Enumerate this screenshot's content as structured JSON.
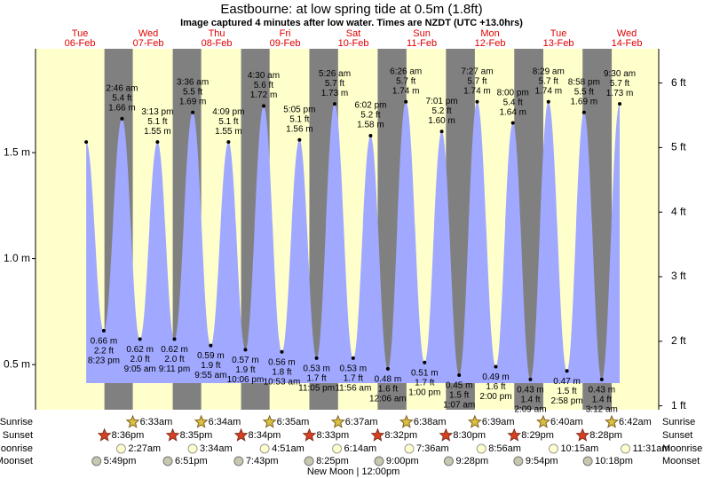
{
  "chart_data": {
    "type": "area",
    "title": "Eastbourne: at low  spring tide at 0.5m (1.8ft)",
    "subtitle": "Image captured 4 minutes after low water. Times are NZDT (UTC +13.0hrs)",
    "days": [
      {
        "weekday": "Tue",
        "date": "06-Feb"
      },
      {
        "weekday": "Wed",
        "date": "07-Feb"
      },
      {
        "weekday": "Thu",
        "date": "08-Feb"
      },
      {
        "weekday": "Fri",
        "date": "09-Feb"
      },
      {
        "weekday": "Sat",
        "date": "10-Feb"
      },
      {
        "weekday": "Sun",
        "date": "11-Feb"
      },
      {
        "weekday": "Mon",
        "date": "12-Feb"
      },
      {
        "weekday": "Tue",
        "date": "13-Feb"
      },
      {
        "weekday": "Wed",
        "date": "14-Feb"
      }
    ],
    "xlim": [
      -3.6,
      215.2
    ],
    "ylim": [
      0.287,
      1.99
    ],
    "yticks": [
      {
        "value": 0.5,
        "label": "0.5 m"
      },
      {
        "value": 1.0,
        "label": "1.0 m"
      },
      {
        "value": 1.5,
        "label": "1.5 m"
      }
    ],
    "y2lim": [
      0.94,
      6.53
    ],
    "y2ticks": [
      {
        "value": 1,
        "label": "1 ft"
      },
      {
        "value": 2,
        "label": "2 ft"
      },
      {
        "value": 3,
        "label": "3 ft"
      },
      {
        "value": 4,
        "label": "4 ft"
      },
      {
        "value": 5,
        "label": "5 ft"
      },
      {
        "value": 6,
        "label": "6 ft"
      }
    ],
    "day_color": "#ffffcc",
    "night_color": "#808080",
    "series": [
      {
        "color": "#a0a8ff",
        "x": [
          14.2,
          20.38,
          26.77,
          33.08,
          39.22,
          45.18,
          51.6,
          57.92,
          64.15,
          70.1,
          76.5,
          82.88,
          89.08,
          95.08,
          101.43,
          107.93,
          114.03,
          120.1,
          126.43,
          133,
          139.02,
          145.12,
          151.45,
          158,
          164,
          170.15,
          176.48,
          182.97,
          188.97,
          195.2,
          201.5
        ],
        "values": [
          1.55,
          0.66,
          1.66,
          0.62,
          1.55,
          0.62,
          1.69,
          0.59,
          1.55,
          0.57,
          1.72,
          0.56,
          1.56,
          0.53,
          1.73,
          0.53,
          1.58,
          0.48,
          1.74,
          0.51,
          1.6,
          0.45,
          1.74,
          0.49,
          1.64,
          0.43,
          1.74,
          0.47,
          1.69,
          0.43,
          1.73
        ],
        "value_labels": [
          null,
          "0.66 m",
          "1.66 m",
          "0.62 m",
          "1.55 m",
          "0.62 m",
          "1.69 m",
          "0.59 m",
          "1.55 m",
          "0.57 m",
          "1.72 m",
          "0.56 m",
          "1.56 m",
          "0.53 m",
          "1.73 m",
          "0.53 m",
          "1.58 m",
          "0.48 m",
          "1.74 m",
          "0.51 m",
          "1.60 m",
          "0.45 m",
          "1.74 m",
          "0.49 m",
          "1.64 m",
          "0.43 m",
          "1.74 m",
          "0.47 m",
          "1.69 m",
          "0.43 m",
          "1.73 m"
        ],
        "feet_labels": [
          null,
          "2.2 ft",
          "5.4 ft",
          "2.0 ft",
          "5.1 ft",
          "2.0 ft",
          "5.5 ft",
          "1.9 ft",
          "5.1 ft",
          "1.9 ft",
          "5.6 ft",
          "1.8 ft",
          "5.1 ft",
          "1.7 ft",
          "5.7 ft",
          "1.7 ft",
          "5.2 ft",
          "1.6 ft",
          "5.7 ft",
          "1.7 ft",
          "5.2 ft",
          "1.5 ft",
          "5.7 ft",
          "1.6 ft",
          "5.4 ft",
          "1.4 ft",
          "5.7 ft",
          "1.5 ft",
          "5.5 ft",
          "1.4 ft",
          "5.7 ft"
        ],
        "times": [
          null,
          "8:23 pm",
          "2:46 am",
          "9:05 am",
          "3:13 pm",
          "9:11 pm",
          "3:36 am",
          "9:55 am",
          "4:09 pm",
          "10:06 pm",
          "4:30 am",
          "10:53 am",
          "5:05 pm",
          "11:05 pm",
          "5:26 am",
          "11:56 am",
          "6:02 pm",
          "12:06 am",
          "6:26 am",
          "1:00 pm",
          "7:01 pm",
          "1:07 am",
          "7:27 am",
          "2:00 pm",
          "8:00 pm",
          "2:09 am",
          "8:29 am",
          "2:58 pm",
          "8:58 pm",
          "3:12 am",
          "9:30 am"
        ]
      }
    ],
    "rows": [
      {
        "name": "Sunrise",
        "icon": "sunrise",
        "x": [
          30.55,
          54.57,
          78.58,
          102.62,
          126.63,
          150.65,
          174.67,
          198.7
        ],
        "labels": [
          "6:33am",
          "6:34am",
          "6:35am",
          "6:37am",
          "6:38am",
          "6:39am",
          "6:40am",
          "6:42am"
        ]
      },
      {
        "name": "Sunset",
        "icon": "sunset",
        "x": [
          20.6,
          44.58,
          68.57,
          92.55,
          116.53,
          140.5,
          164.48,
          188.47
        ],
        "labels": [
          "8:36pm",
          "8:35pm",
          "8:34pm",
          "8:33pm",
          "8:32pm",
          "8:30pm",
          "8:29pm",
          "8:28pm"
        ]
      },
      {
        "name": "Moonrise",
        "icon": "moonrise",
        "x": [
          26.45,
          51.57,
          76.85,
          102.23,
          127.6,
          152.93,
          178.25,
          203.52
        ],
        "labels": [
          "2:27am",
          "3:34am",
          "4:51am",
          "6:14am",
          "7:36am",
          "8:56am",
          "10:15am",
          "11:31am"
        ]
      },
      {
        "name": "Moonset",
        "icon": "moonset",
        "x": [
          17.82,
          42.85,
          67.72,
          92.42,
          117,
          141.47,
          165.9,
          190.3
        ],
        "labels": [
          "5:49pm",
          "6:51pm",
          "7:43pm",
          "8:25pm",
          "9:00pm",
          "9:28pm",
          "9:54pm",
          "10:18pm"
        ]
      }
    ],
    "moon_phase": {
      "x": 108,
      "label": "New Moon | 12:00pm"
    }
  }
}
